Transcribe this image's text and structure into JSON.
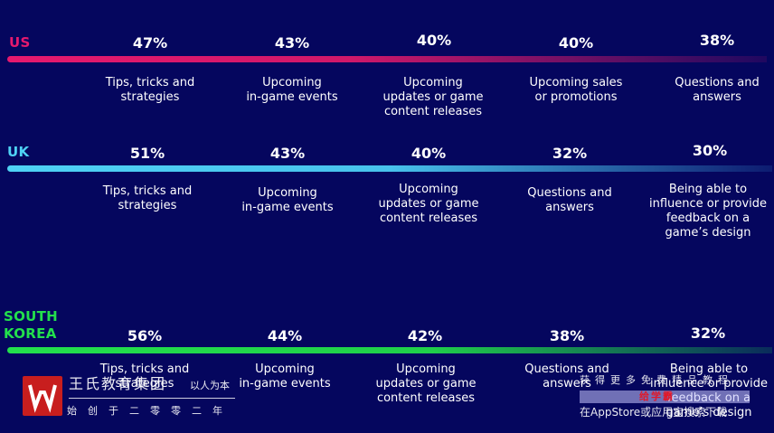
{
  "chart_data": {
    "type": "table",
    "colors": {
      "us": "#e6196e",
      "uk": "#4fd2f5",
      "south_korea": "#23e04c",
      "text": "#ffffff",
      "background": "#05065e"
    },
    "rows": [
      {
        "country": "US",
        "items": [
          {
            "value": "47%",
            "label": "Tips, tricks and\nstrategies"
          },
          {
            "value": "43%",
            "label": "Upcoming\nin-game events"
          },
          {
            "value": "40%",
            "label": "Upcoming\nupdates or game\ncontent releases"
          },
          {
            "value": "40%",
            "label": "Upcoming sales\nor promotions"
          },
          {
            "value": "38%",
            "label": "Questions and\nanswers"
          }
        ]
      },
      {
        "country": "UK",
        "items": [
          {
            "value": "51%",
            "label": "Tips, tricks and\nstrategies"
          },
          {
            "value": "43%",
            "label": "Upcoming\nin-game events"
          },
          {
            "value": "40%",
            "label": "Upcoming\nupdates or game\ncontent releases"
          },
          {
            "value": "32%",
            "label": "Questions and\nanswers"
          },
          {
            "value": "30%",
            "label": "Being able to\ninfluence or provide\nfeedback on a\ngame’s design"
          }
        ]
      },
      {
        "country": "SOUTH\nKOREA",
        "items": [
          {
            "value": "56%",
            "label": "Tips, tricks and\nstrategies"
          },
          {
            "value": "44%",
            "label": "Upcoming\nin-game events"
          },
          {
            "value": "42%",
            "label": "Upcoming\nupdates or game\ncontent releases"
          },
          {
            "value": "38%",
            "label": "Questions and\nanswers"
          },
          {
            "value": "32%",
            "label": "Being able to\ninfluence or provide\nfeedback on a\ngame’s design"
          }
        ]
      }
    ]
  },
  "watermark": {
    "name": "王氏教育集团",
    "motto": "以人为本",
    "years": "始创于二零零二年",
    "right_line1": "获得更多免费精品教程",
    "right_line2": "给学霸",
    "right_line3": "在AppStore或应用宝搜索下载"
  }
}
